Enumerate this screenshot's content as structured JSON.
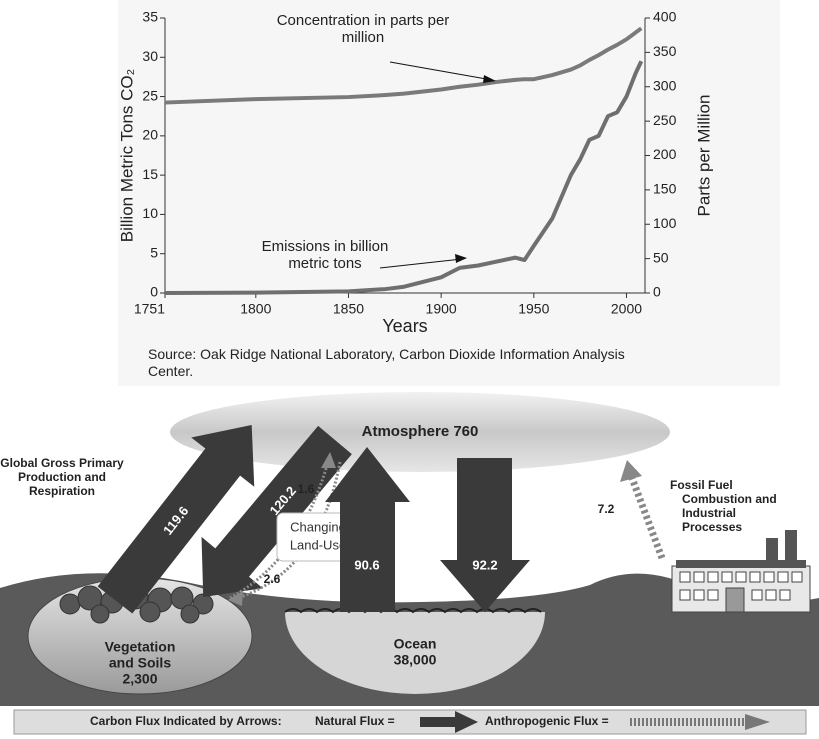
{
  "chart_data": {
    "type": "line",
    "x_label": "Years",
    "y_label": "Billion Metric Tons CO₂",
    "y2_label": "Parts per Million",
    "source": "Source: Oak Ridge National Laboratory, Carbon Dioxide Information Analysis Center.",
    "x": [
      1751,
      1800,
      1850,
      1870,
      1880,
      1900,
      1910,
      1920,
      1930,
      1940,
      1945,
      1950,
      1960,
      1970,
      1975,
      1980,
      1985,
      1990,
      1995,
      2000,
      2005,
      2008
    ],
    "series": [
      {
        "name": "Emissions in billion metric tons",
        "color": "#6f6f6f",
        "values": [
          0,
          0.05,
          0.2,
          0.5,
          0.8,
          2,
          3.2,
          3.5,
          4,
          4.5,
          4.2,
          6,
          9.5,
          15,
          17,
          19.5,
          20,
          22.5,
          23,
          25,
          28,
          29.5
        ]
      },
      {
        "name": "Concentration in parts per million",
        "color": "#7a7a7a",
        "axis": "y2",
        "values": [
          277,
          282,
          285,
          288,
          290,
          296,
          300,
          303,
          307,
          310,
          311,
          311,
          317,
          325,
          331,
          339,
          346,
          354,
          361,
          369,
          379,
          385
        ]
      }
    ],
    "xlim": [
      1751,
      2010
    ],
    "xticks": [
      1751,
      1800,
      1850,
      1900,
      1950,
      2000
    ],
    "ylim": [
      0,
      35
    ],
    "yticks": [
      0,
      5,
      10,
      15,
      20,
      25,
      30,
      35
    ],
    "y2lim": [
      0,
      400
    ],
    "y2ticks": [
      0,
      50,
      100,
      150,
      200,
      250,
      300,
      350,
      400
    ]
  },
  "diagram": {
    "atmosphere": "Atmosphere 760",
    "gpp_label": [
      "Global Gross Primary",
      "Production and",
      "Respiration"
    ],
    "gpp_up": "119.6",
    "gpp_down": "120.2",
    "landuse_up": "1.6",
    "landuse_down": "2.6",
    "landuse_label": [
      "Changing",
      "Land-Use"
    ],
    "ocean_up": "90.6",
    "ocean_down": "92.2",
    "fossil_flux": "7.2",
    "fossil_label": [
      "Fossil Fuel",
      "Combustion and",
      "Industrial",
      "Processes"
    ],
    "vegetation": [
      "Vegetation",
      "and Soils",
      "2,300"
    ],
    "ocean": [
      "Ocean",
      "38,000"
    ],
    "legend": {
      "title": "Carbon Flux Indicated by Arrows:",
      "natural": "Natural Flux =",
      "anthropogenic": "Anthropogenic Flux ="
    }
  }
}
